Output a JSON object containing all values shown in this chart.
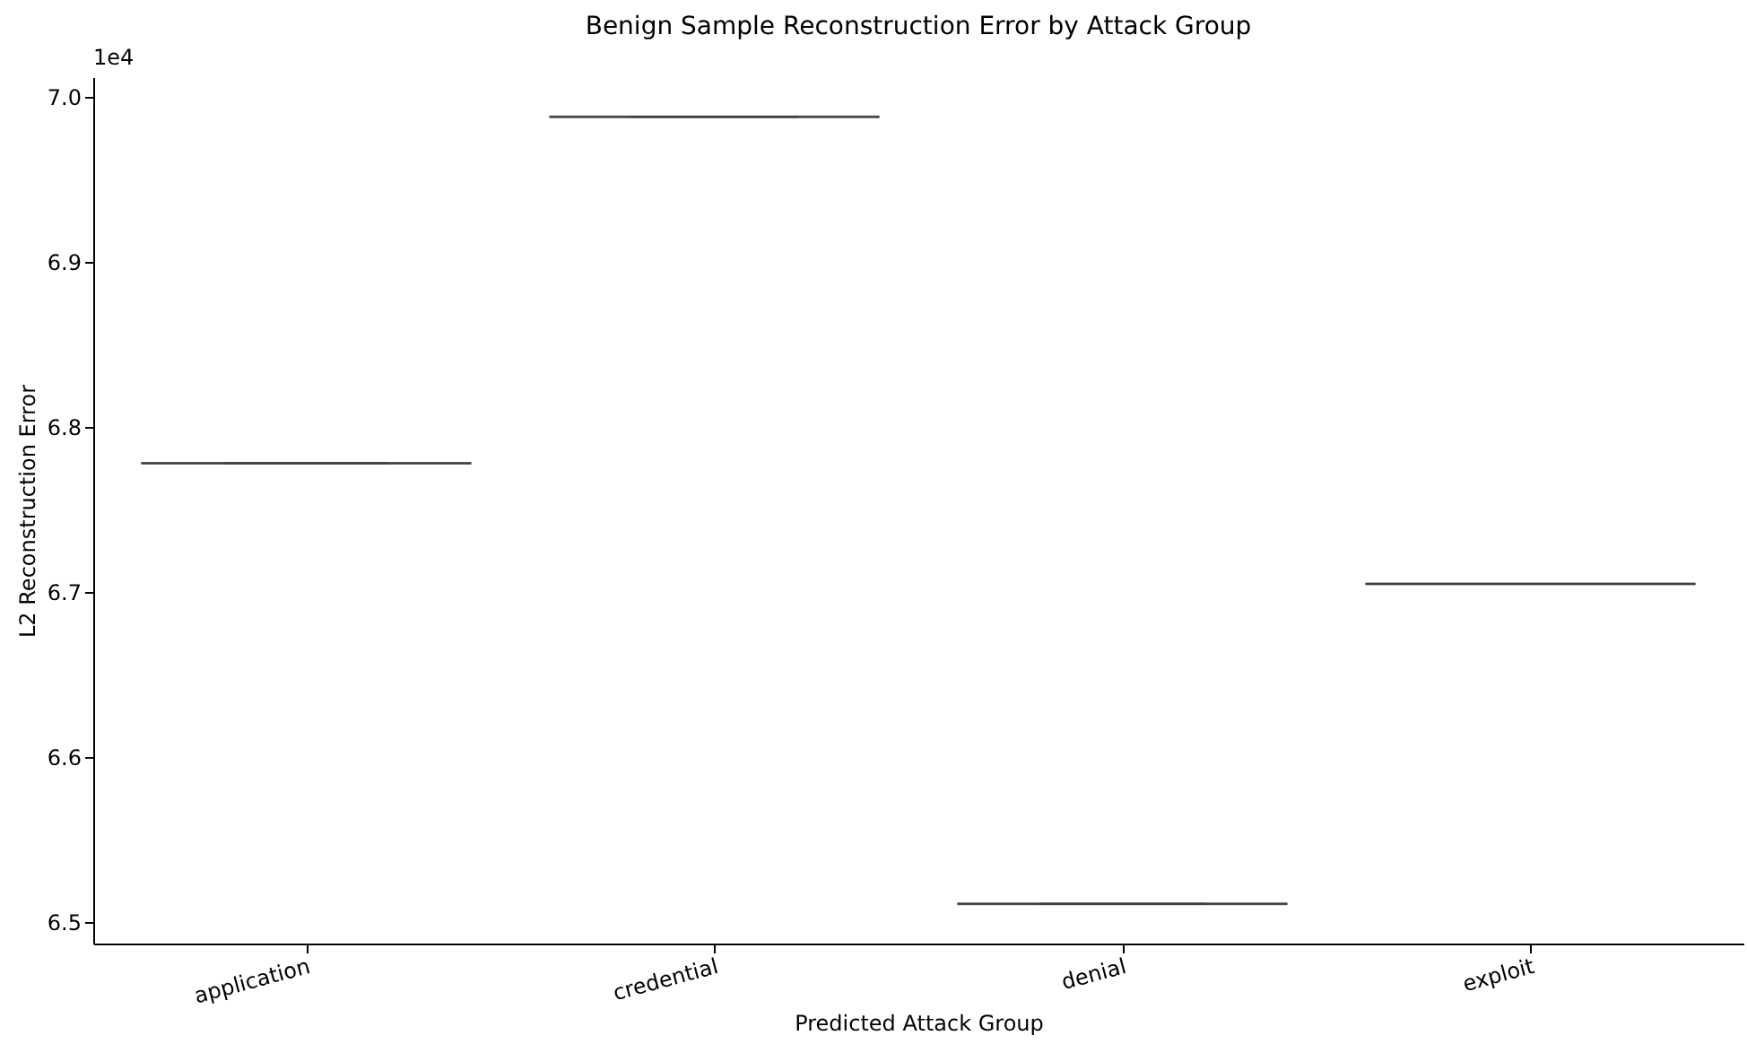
{
  "chart_data": {
    "type": "box",
    "title": "Benign Sample Reconstruction Error by Attack Group",
    "xlabel": "Predicted Attack Group",
    "ylabel": "L2 Reconstruction Error",
    "categories": [
      "application",
      "credential",
      "denial",
      "exploit"
    ],
    "boxes": [
      {
        "low": 6.778,
        "q1": 6.778,
        "median": 6.778,
        "q3": 6.778,
        "high": 6.778
      },
      {
        "low": 6.988,
        "q1": 6.988,
        "median": 6.988,
        "q3": 6.988,
        "high": 6.988
      },
      {
        "low": 6.511,
        "q1": 6.511,
        "median": 6.511,
        "q3": 6.511,
        "high": 6.511
      },
      {
        "low": 6.705,
        "q1": 6.705,
        "median": 6.705,
        "q3": 6.705,
        "high": 6.705
      }
    ],
    "color": "#3f3f3f",
    "ylim": [
      6.487,
      7.012
    ],
    "yticks": [
      6.5,
      6.6,
      6.7,
      6.8,
      6.9,
      {
        "value": 7.0,
        "label": "7.0"
      }
    ],
    "annotations": [
      "1e4"
    ],
    "grid": false
  }
}
